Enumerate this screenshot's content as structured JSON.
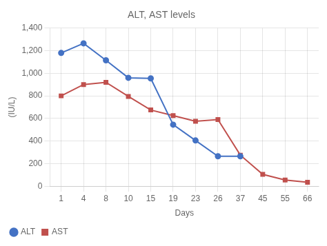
{
  "chart_data": {
    "type": "line",
    "title": "ALT, AST levels",
    "xlabel": "Days",
    "ylabel": "(IU/L)",
    "categories": [
      "1",
      "4",
      "8",
      "10",
      "15",
      "19",
      "23",
      "26",
      "37",
      "45",
      "55",
      "66"
    ],
    "series": [
      {
        "name": "ALT",
        "color": "#4472c4",
        "marker": "circle",
        "values": [
          1180,
          1265,
          1115,
          960,
          955,
          545,
          405,
          265,
          265,
          null,
          null,
          null
        ]
      },
      {
        "name": "AST",
        "color": "#c0504d",
        "marker": "square",
        "values": [
          800,
          900,
          920,
          795,
          675,
          625,
          575,
          590,
          275,
          105,
          55,
          35
        ]
      }
    ],
    "ylim": [
      0,
      1400
    ],
    "yticks": [
      0,
      200,
      400,
      600,
      800,
      1000,
      1200,
      1400
    ],
    "grid": true,
    "legend": "bottom"
  }
}
